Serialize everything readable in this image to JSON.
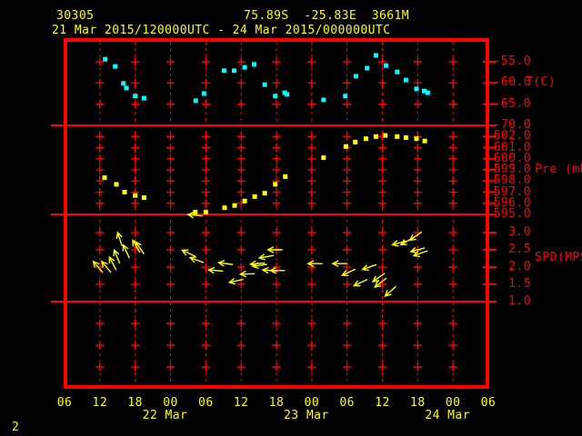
{
  "header": {
    "station_id": "30305",
    "location": "75.89S  -25.83E  3661M",
    "time_range": "21 Mar 2015/120000UTC - 24 Mar 2015/000000UTC"
  },
  "footer": {
    "page_number": "2"
  },
  "colors": {
    "background": "#000000",
    "grid": "#ff0000",
    "axis_text": "#ff0000",
    "header_text": "#ffff00",
    "temperature_series": "#00ffff",
    "pressure_series": "#ffff00",
    "wind_series": "#ffff00"
  },
  "chart_data": {
    "type": "scatter",
    "x": {
      "tick_labels": [
        "06",
        "12",
        "18",
        "00",
        "06",
        "12",
        "18",
        "00",
        "06",
        "12",
        "18",
        "00",
        "06"
      ],
      "hours_per_tick": 6,
      "start_hour_utc": 6,
      "date_labels": [
        {
          "label": "22 Mar",
          "tick_index": 3
        },
        {
          "label": "23 Mar",
          "tick_index": 7
        },
        {
          "label": "24 Mar",
          "tick_index": 11
        }
      ]
    },
    "panels": [
      {
        "id": "temperature",
        "unit_label": "T(C)",
        "yticks": [
          -55,
          -60,
          -65,
          -70
        ],
        "ytick_labels": [
          "-55.0",
          "-60.0",
          "-65.0",
          "-70.0"
        ],
        "ylim": [
          -50,
          -70
        ],
        "points": [
          {
            "t": 6.9,
            "v": -54.4
          },
          {
            "t": 8.6,
            "v": -56.1
          },
          {
            "t": 10.0,
            "v": -60.1
          },
          {
            "t": 10.5,
            "v": -61.2
          },
          {
            "t": 12.0,
            "v": -63.1
          },
          {
            "t": 13.5,
            "v": -63.6
          },
          {
            "t": 22.3,
            "v": -64.2
          },
          {
            "t": 23.7,
            "v": -62.5
          },
          {
            "t": 27.1,
            "v": -57.1
          },
          {
            "t": 28.8,
            "v": -57.1
          },
          {
            "t": 30.6,
            "v": -56.3
          },
          {
            "t": 32.2,
            "v": -55.6
          },
          {
            "t": 34.0,
            "v": -60.4
          },
          {
            "t": 35.8,
            "v": -63.1
          },
          {
            "t": 37.4,
            "v": -62.3
          },
          {
            "t": 37.8,
            "v": -62.7
          },
          {
            "t": 44.0,
            "v": -64.0
          },
          {
            "t": 47.7,
            "v": -63.1
          },
          {
            "t": 49.5,
            "v": -58.4
          },
          {
            "t": 51.4,
            "v": -56.5
          },
          {
            "t": 52.9,
            "v": -53.5
          },
          {
            "t": 54.6,
            "v": -55.9
          },
          {
            "t": 56.5,
            "v": -57.4
          },
          {
            "t": 58.0,
            "v": -59.3
          },
          {
            "t": 59.8,
            "v": -61.4
          },
          {
            "t": 61.1,
            "v": -61.9
          },
          {
            "t": 61.7,
            "v": -62.3
          }
        ]
      },
      {
        "id": "pressure",
        "unit_label": "Pre (mb)",
        "yticks": [
          602,
          601,
          600,
          599,
          598,
          597,
          596,
          595
        ],
        "ytick_labels": [
          "602.0",
          "601.0",
          "600.0",
          "599.0",
          "598.0",
          "597.0",
          "596.0",
          "595.0"
        ],
        "ylim": [
          603,
          595
        ],
        "points": [
          {
            "t": 6.8,
            "v": 598.3
          },
          {
            "t": 8.8,
            "v": 597.7
          },
          {
            "t": 10.2,
            "v": 597.0
          },
          {
            "t": 12.0,
            "v": 596.7
          },
          {
            "t": 13.5,
            "v": 596.5
          },
          {
            "t": 22.2,
            "v": 595.2
          },
          {
            "t": 24.0,
            "v": 595.2
          },
          {
            "t": 27.2,
            "v": 595.6
          },
          {
            "t": 28.9,
            "v": 595.8
          },
          {
            "t": 30.6,
            "v": 596.2
          },
          {
            "t": 32.3,
            "v": 596.6
          },
          {
            "t": 34.0,
            "v": 596.9
          },
          {
            "t": 35.8,
            "v": 597.7
          },
          {
            "t": 37.5,
            "v": 598.4
          },
          {
            "t": 44.0,
            "v": 600.1
          },
          {
            "t": 47.8,
            "v": 601.1
          },
          {
            "t": 49.4,
            "v": 601.5
          },
          {
            "t": 51.2,
            "v": 601.8
          },
          {
            "t": 52.9,
            "v": 602.0
          },
          {
            "t": 54.5,
            "v": 602.1
          },
          {
            "t": 56.5,
            "v": 602.0
          },
          {
            "t": 58.0,
            "v": 601.9
          },
          {
            "t": 59.8,
            "v": 601.8
          },
          {
            "t": 61.2,
            "v": 601.6
          }
        ]
      },
      {
        "id": "wind_speed",
        "unit_label": "SPD(MPS)",
        "yticks": [
          3.0,
          2.5,
          2.0,
          1.5,
          1.0
        ],
        "ytick_labels": [
          "3.0",
          "2.5",
          "2.0",
          "1.5",
          "1.0"
        ],
        "ylim": [
          3.5,
          1.0
        ],
        "dir_convention": "pointing direction in degrees, 0=east, 90=up/north",
        "arrows": [
          {
            "t": 5.7,
            "spd": 2.0,
            "dir": 130
          },
          {
            "t": 7.1,
            "spd": 2.0,
            "dir": 130
          },
          {
            "t": 8.2,
            "spd": 2.1,
            "dir": 118
          },
          {
            "t": 8.9,
            "spd": 2.3,
            "dir": 112
          },
          {
            "t": 9.4,
            "spd": 2.8,
            "dir": 108
          },
          {
            "t": 10.5,
            "spd": 2.45,
            "dir": 115
          },
          {
            "t": 12.2,
            "spd": 2.6,
            "dir": 120
          },
          {
            "t": 12.8,
            "spd": 2.55,
            "dir": 125
          },
          {
            "t": 21.1,
            "spd": 2.4,
            "dir": 155
          },
          {
            "t": 22.2,
            "spd": 3.5,
            "dir": 175
          },
          {
            "t": 22.5,
            "spd": 2.2,
            "dir": 160
          },
          {
            "t": 25.7,
            "spd": 1.9,
            "dir": 175
          },
          {
            "t": 27.4,
            "spd": 2.1,
            "dir": 172
          },
          {
            "t": 29.2,
            "spd": 1.6,
            "dir": 192
          },
          {
            "t": 31.1,
            "spd": 1.8,
            "dir": 182
          },
          {
            "t": 32.8,
            "spd": 2.1,
            "dir": 185
          },
          {
            "t": 33.2,
            "spd": 2.05,
            "dir": 188
          },
          {
            "t": 34.3,
            "spd": 2.3,
            "dir": 190
          },
          {
            "t": 34.9,
            "spd": 1.9,
            "dir": 175
          },
          {
            "t": 35.8,
            "spd": 2.5,
            "dir": 180
          },
          {
            "t": 36.2,
            "spd": 1.9,
            "dir": 180
          },
          {
            "t": 42.6,
            "spd": 2.1,
            "dir": 180
          },
          {
            "t": 46.8,
            "spd": 2.1,
            "dir": 180
          },
          {
            "t": 48.3,
            "spd": 1.85,
            "dir": 205
          },
          {
            "t": 50.3,
            "spd": 1.55,
            "dir": 205
          },
          {
            "t": 51.8,
            "spd": 2.0,
            "dir": 200
          },
          {
            "t": 53.4,
            "spd": 1.7,
            "dir": 215
          },
          {
            "t": 53.7,
            "spd": 1.55,
            "dir": 218
          },
          {
            "t": 55.4,
            "spd": 1.3,
            "dir": 222
          },
          {
            "t": 56.9,
            "spd": 2.7,
            "dir": 195
          },
          {
            "t": 58.2,
            "spd": 2.75,
            "dir": 210
          },
          {
            "t": 59.7,
            "spd": 2.9,
            "dir": 215
          },
          {
            "t": 60.0,
            "spd": 2.5,
            "dir": 195
          },
          {
            "t": 60.5,
            "spd": 2.4,
            "dir": 200
          }
        ]
      }
    ]
  }
}
